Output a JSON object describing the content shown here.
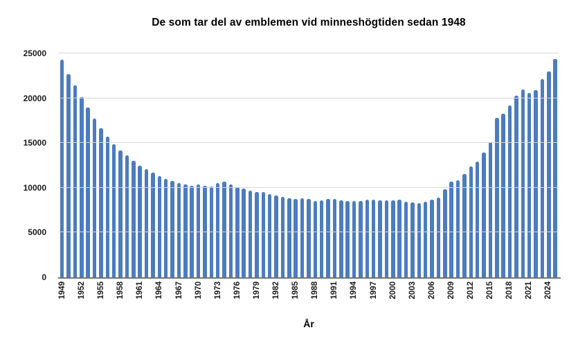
{
  "chart_data": {
    "type": "bar",
    "title": "De som tar del av emblemen vid minneshögtiden sedan 1948",
    "xlabel": "År",
    "ylabel": "",
    "ylim": [
      0,
      25000
    ],
    "y_ticks": [
      0,
      5000,
      10000,
      15000,
      20000,
      25000
    ],
    "y_tick_labels": [
      "0",
      "5000",
      "10000",
      "15000",
      "20000",
      "25000"
    ],
    "x_tick_start": 1949,
    "x_tick_interval": 3,
    "grid": true,
    "legend": false,
    "bar_color": "#4b7cbe",
    "gridline_color": "#d6d6d6",
    "axis_line_color": "#757575",
    "text_color": "#1a1a1a",
    "categories": [
      1949,
      1950,
      1951,
      1952,
      1953,
      1954,
      1955,
      1956,
      1957,
      1958,
      1959,
      1960,
      1961,
      1962,
      1963,
      1964,
      1965,
      1966,
      1967,
      1968,
      1969,
      1970,
      1971,
      1972,
      1973,
      1974,
      1975,
      1976,
      1977,
      1978,
      1979,
      1980,
      1981,
      1982,
      1983,
      1984,
      1985,
      1986,
      1987,
      1988,
      1989,
      1990,
      1991,
      1992,
      1993,
      1994,
      1995,
      1996,
      1997,
      1998,
      1999,
      2000,
      2001,
      2002,
      2003,
      2004,
      2005,
      2006,
      2007,
      2008,
      2009,
      2010,
      2011,
      2012,
      2013,
      2014,
      2015,
      2016,
      2017,
      2018,
      2019,
      2020,
      2021,
      2022,
      2023,
      2024,
      2025
    ],
    "values": [
      24300,
      22650,
      21450,
      20100,
      19000,
      17750,
      16650,
      15700,
      14900,
      14200,
      13600,
      13000,
      12500,
      12050,
      11650,
      11300,
      11000,
      10750,
      10550,
      10400,
      10250,
      10350,
      10200,
      10150,
      10500,
      10650,
      10350,
      10100,
      9900,
      9700,
      9550,
      9500,
      9300,
      9100,
      8950,
      8850,
      8750,
      8850,
      8750,
      8550,
      8600,
      8750,
      8750,
      8600,
      8500,
      8500,
      8550,
      8650,
      8650,
      8600,
      8600,
      8600,
      8650,
      8400,
      8350,
      8300,
      8400,
      8700,
      8900,
      9800,
      10650,
      10850,
      11550,
      12350,
      12900,
      13900,
      15100,
      17800,
      18300,
      19200,
      20300,
      21000,
      20600,
      20900,
      22100,
      23000,
      24400
    ]
  }
}
